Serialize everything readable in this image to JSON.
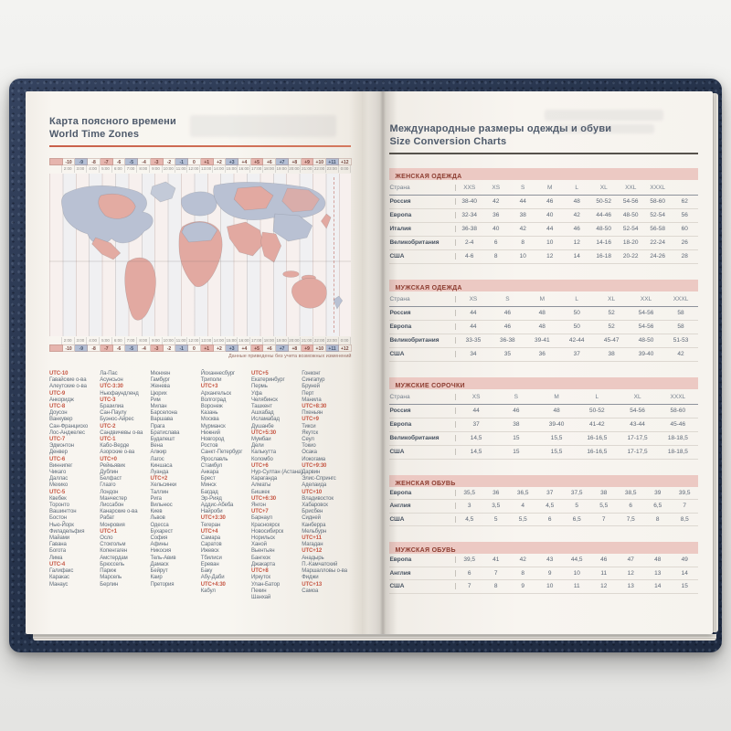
{
  "colors": {
    "accent_orange": "#c9604a",
    "band_pink": "#ecc9c3",
    "utc_red": "#c65744",
    "cover_navy": "#26334b"
  },
  "left_page": {
    "title_ru": "Карта поясного времени",
    "title_en": "World Time Zones",
    "map_caption": "Данные приведены без учета возможных изменений",
    "ruler_offsets": [
      "-10",
      "-9",
      "-8",
      "-7",
      "-6",
      "-5",
      "-4",
      "-3",
      "-2",
      "-1",
      "0",
      "+1",
      "+2",
      "+3",
      "+4",
      "+5",
      "+6",
      "+7",
      "+8",
      "+9",
      "+10",
      "+11",
      "+12"
    ],
    "ruler_times": [
      "2:00",
      "3:00",
      "4:00",
      "5:00",
      "6:00",
      "7:00",
      "8:00",
      "9:00",
      "10:00",
      "11:00",
      "12:00",
      "13:00",
      "14:00",
      "15:00",
      "16:00",
      "17:00",
      "18:00",
      "19:00",
      "20:00",
      "21:00",
      "22:00",
      "23:00",
      "0:00"
    ],
    "cities_columns": [
      [
        "UTC-10",
        "Гавайские о-ва",
        "Алеутские о-ва",
        "UTC-9",
        "Анкоридж",
        "UTC-8",
        "Доусон",
        "Ванкувер",
        "Сан-Франциско",
        "Лос-Анджелес",
        "UTC-7",
        "Эдмонтон",
        "Денвер",
        "UTC-6",
        "Виннипег",
        "Чикаго",
        "Даллас",
        "Мехико",
        "UTC-5",
        "Квебек",
        "Торонто",
        "Вашингтон",
        "Бостон",
        "Нью-Йорк",
        "Филадельфия",
        "Майами",
        "Гавана",
        "Богота",
        "Лима",
        "UTC-4",
        "Галифакс",
        "Каракас",
        "Манаус"
      ],
      [
        "Ла-Пас",
        "Асунсьон",
        "UTC-3:30",
        "Ньюфаундленд",
        "UTC-3",
        "Бразилиа",
        "Сан-Паулу",
        "Буэнос-Айрес",
        "UTC-2",
        "Сандвичевы о-ва",
        "UTC-1",
        "Кабо-Верде",
        "Азорские о-ва",
        "UTC+0",
        "Рейкьявик",
        "Дублин",
        "Белфаст",
        "Глазго",
        "Лондон",
        "Манчестер",
        "Лиссабон",
        "Канарские о-ва",
        "Рабат",
        "Монровия",
        "UTC+1",
        "Осло",
        "Стокгольм",
        "Копенгаген",
        "Амстердам",
        "Брюссель",
        "Париж",
        "Марсель",
        "Берлин"
      ],
      [
        "Мюнхен",
        "Гамбург",
        "Женева",
        "Цюрих",
        "Рим",
        "Милан",
        "Барселона",
        "Варшава",
        "Прага",
        "Братислава",
        "Будапешт",
        "Вена",
        "Алжир",
        "Лагос",
        "Киншаса",
        "Луанда",
        "UTC+2",
        "Хельсинки",
        "Таллин",
        "Рига",
        "Вильнюс",
        "Киев",
        "Львов",
        "Одесса",
        "Бухарест",
        "София",
        "Афины",
        "Никосия",
        "Тель-Авив",
        "Дамаск",
        "Бейрут",
        "Каир",
        "Претория"
      ],
      [
        "Йоханнесбург",
        "Триполи",
        "UTC+3",
        "Архангельск",
        "Волгоград",
        "Воронеж",
        "Казань",
        "Москва",
        "Мурманск",
        "Нижний",
        "Новгород",
        "Ростов",
        "Санкт-Петербург",
        "Ярославль",
        "Стамбул",
        "Анкара",
        "Брест",
        "Минск",
        "Багдад",
        "Эр-Рияд",
        "Аддис-Абеба",
        "Найроби",
        "UTC+3:30",
        "Тегеран",
        "UTC+4",
        "Самара",
        "Саратов",
        "Ижевск",
        "Тбилиси",
        "Ереван",
        "Баку",
        "Абу-Даби",
        "UTC+4:30",
        "Кабул"
      ],
      [
        "UTC+5",
        "Екатеринбург",
        "Пермь",
        "Уфа",
        "Челябинск",
        "Ташкент",
        "Ашхабад",
        "Исламабад",
        "Душанбе",
        "UTC+5:30",
        "Мумбаи",
        "Дели",
        "Калькутта",
        "Коломбо",
        "UTC+6",
        "Нур-Султан (Астана)",
        "Караганда",
        "Алматы",
        "Бишкек",
        "UTC+6:30",
        "Янгон",
        "UTC+7",
        "Барнаул",
        "Красноярск",
        "Новосибирск",
        "Норильск",
        "Ханой",
        "Вьентьян",
        "Бангкок",
        "Джакарта",
        "UTC+8",
        "Иркутск",
        "Улан-Батор",
        "Пекин",
        "Шанхай"
      ],
      [
        "Гонконг",
        "Сингапур",
        "Бруней",
        "Перт",
        "Манила",
        "UTC+8:30",
        "Пхеньян",
        "UTC+9",
        "Тикси",
        "Якутск",
        "Сеул",
        "Токио",
        "Осака",
        "Иокогама",
        "UTC+9:30",
        "Дарвин",
        "Элис-Спрингс",
        "Аделаида",
        "UTC+10",
        "Владивосток",
        "Хабаровск",
        "Брисбен",
        "Сидней",
        "Канберра",
        "Мельбурн",
        "UTC+11",
        "Магадан",
        "UTC+12",
        "Анадырь",
        "П.-Камчатский",
        "Маршалловы о-ва",
        "Фиджи",
        "UTC+13",
        "Самоа"
      ]
    ]
  },
  "right_page": {
    "title_ru": "Международные размеры одежды и обуви",
    "title_en": "Size Conversion Charts",
    "tables": [
      {
        "name": "ЖЕНСКАЯ ОДЕЖДА",
        "country_label": "Страна",
        "sizes": [
          "XXS",
          "XS",
          "S",
          "M",
          "L",
          "XL",
          "XXL",
          "XXXL",
          ""
        ],
        "rows": [
          {
            "label": "Россия",
            "values": [
              "38-40",
              "42",
              "44",
              "46",
              "48",
              "50-52",
              "54-56",
              "58-60",
              "62"
            ]
          },
          {
            "label": "Европа",
            "values": [
              "32-34",
              "36",
              "38",
              "40",
              "42",
              "44-46",
              "48-50",
              "52-54",
              "56"
            ]
          },
          {
            "label": "Италия",
            "values": [
              "36-38",
              "40",
              "42",
              "44",
              "46",
              "48-50",
              "52-54",
              "56-58",
              "60"
            ]
          },
          {
            "label": "Великобритания",
            "values": [
              "2-4",
              "6",
              "8",
              "10",
              "12",
              "14-16",
              "18-20",
              "22-24",
              "26"
            ]
          },
          {
            "label": "США",
            "values": [
              "4-6",
              "8",
              "10",
              "12",
              "14",
              "16-18",
              "20-22",
              "24-26",
              "28"
            ]
          }
        ]
      },
      {
        "name": "МУЖСКАЯ ОДЕЖДА",
        "country_label": "Страна",
        "sizes": [
          "XS",
          "S",
          "M",
          "L",
          "XL",
          "XXL",
          "XXXL"
        ],
        "rows": [
          {
            "label": "Россия",
            "values": [
              "44",
              "46",
              "48",
              "50",
              "52",
              "54-56",
              "58"
            ]
          },
          {
            "label": "Европа",
            "values": [
              "44",
              "46",
              "48",
              "50",
              "52",
              "54-56",
              "58"
            ]
          },
          {
            "label": "Великобритания",
            "values": [
              "33-35",
              "36-38",
              "39-41",
              "42-44",
              "45-47",
              "48-50",
              "51-53"
            ]
          },
          {
            "label": "США",
            "values": [
              "34",
              "35",
              "36",
              "37",
              "38",
              "39-40",
              "42"
            ]
          }
        ]
      },
      {
        "name": "МУЖСКИЕ СОРОЧКИ",
        "country_label": "Страна",
        "sizes": [
          "XS",
          "S",
          "M",
          "L",
          "XL",
          "XXXL"
        ],
        "rows": [
          {
            "label": "Россия",
            "values": [
              "44",
              "46",
              "48",
              "50-52",
              "54-56",
              "58-60"
            ]
          },
          {
            "label": "Европа",
            "values": [
              "37",
              "38",
              "39-40",
              "41-42",
              "43-44",
              "45-46"
            ]
          },
          {
            "label": "Великобритания",
            "values": [
              "14,5",
              "15",
              "15,5",
              "16-16,5",
              "17-17,5",
              "18-18,5"
            ]
          },
          {
            "label": "США",
            "values": [
              "14,5",
              "15",
              "15,5",
              "16-16,5",
              "17-17,5",
              "18-18,5"
            ]
          }
        ]
      },
      {
        "name": "ЖЕНСКАЯ ОБУВЬ",
        "country_label": "",
        "sizes": [],
        "rows": [
          {
            "label": "Европа",
            "values": [
              "35,5",
              "36",
              "36,5",
              "37",
              "37,5",
              "38",
              "38,5",
              "39",
              "39,5"
            ]
          },
          {
            "label": "Англия",
            "values": [
              "3",
              "3,5",
              "4",
              "4,5",
              "5",
              "5,5",
              "6",
              "6,5",
              "7"
            ]
          },
          {
            "label": "США",
            "values": [
              "4,5",
              "5",
              "5,5",
              "6",
              "6,5",
              "7",
              "7,5",
              "8",
              "8,5"
            ]
          }
        ]
      },
      {
        "name": "МУЖСКАЯ ОБУВЬ",
        "country_label": "",
        "sizes": [],
        "rows": [
          {
            "label": "Европа",
            "values": [
              "39,5",
              "41",
              "42",
              "43",
              "44,5",
              "46",
              "47",
              "48",
              "49"
            ]
          },
          {
            "label": "Англия",
            "values": [
              "6",
              "7",
              "8",
              "9",
              "10",
              "11",
              "12",
              "13",
              "14"
            ]
          },
          {
            "label": "США",
            "values": [
              "7",
              "8",
              "9",
              "10",
              "11",
              "12",
              "13",
              "14",
              "15"
            ]
          }
        ]
      }
    ]
  }
}
